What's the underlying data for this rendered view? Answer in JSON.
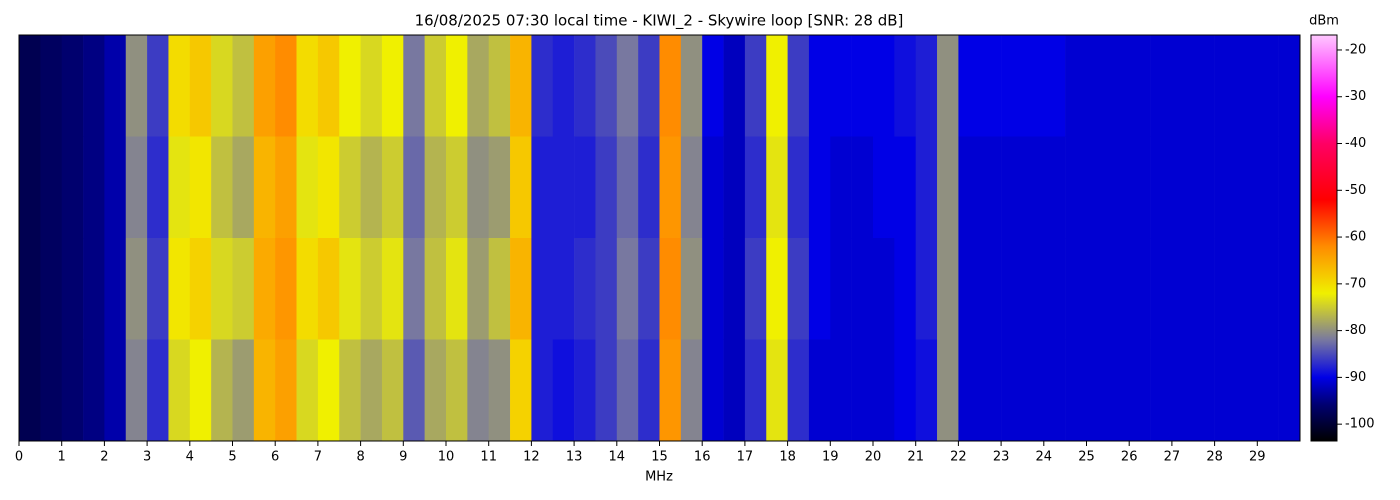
{
  "chart_data": {
    "type": "heatmap",
    "title": "16/08/2025 07:30 local time - KIWI_2 - Skywire loop [SNR: 28 dB]",
    "xlabel": "MHz",
    "colorbar_label": "dBm",
    "xlim": [
      0,
      30
    ],
    "xticks": [
      0,
      1,
      2,
      3,
      4,
      5,
      6,
      7,
      8,
      9,
      10,
      11,
      12,
      13,
      14,
      15,
      16,
      17,
      18,
      19,
      20,
      21,
      22,
      23,
      24,
      25,
      26,
      27,
      28,
      29
    ],
    "x_edges": [
      0,
      0.5,
      1,
      1.5,
      2,
      2.5,
      3,
      3.5,
      4,
      4.5,
      5,
      5.5,
      6,
      6.5,
      7,
      7.5,
      8,
      8.5,
      9,
      9.5,
      10,
      10.5,
      11,
      11.5,
      12,
      12.5,
      13,
      13.5,
      14,
      14.5,
      15,
      15.5,
      16,
      16.5,
      17,
      17.5,
      18,
      18.5,
      19,
      19.5,
      20,
      20.5,
      21,
      21.5,
      22,
      22.5,
      23,
      23.5,
      24,
      24.5,
      25,
      25.5,
      26,
      26.5,
      27,
      27.5,
      28,
      28.5,
      29,
      29.5,
      30
    ],
    "z": [
      [
        -98,
        -97,
        -96,
        -95,
        -93,
        -80,
        -86,
        -70,
        -68,
        -74,
        -76,
        -64,
        -62,
        -70,
        -68,
        -72,
        -74,
        -72,
        -82,
        -75,
        -72,
        -78,
        -76,
        -66,
        -87,
        -88,
        -87,
        -85,
        -82,
        -86,
        -62,
        -80,
        -90,
        -92,
        -86,
        -72,
        -86,
        -90,
        -90,
        -90,
        -90,
        -89,
        -88,
        -80,
        -90,
        -90,
        -90,
        -90,
        -90,
        -91,
        -91,
        -91,
        -91,
        -91,
        -91,
        -91,
        -91,
        -91,
        -91,
        -91
      ],
      [
        -98,
        -97,
        -96,
        -95,
        -93,
        -81,
        -87,
        -73,
        -71,
        -76,
        -78,
        -66,
        -64,
        -73,
        -71,
        -75,
        -77,
        -75,
        -83,
        -77,
        -75,
        -80,
        -79,
        -68,
        -88,
        -88,
        -88,
        -86,
        -83,
        -87,
        -63,
        -81,
        -91,
        -92,
        -87,
        -73,
        -87,
        -90,
        -91,
        -91,
        -90,
        -90,
        -88,
        -80,
        -91,
        -91,
        -91,
        -91,
        -91,
        -91,
        -91,
        -91,
        -91,
        -91,
        -91,
        -91,
        -91,
        -91,
        -91,
        -91
      ],
      [
        -98,
        -97,
        -96,
        -95,
        -93,
        -80,
        -86,
        -71,
        -69,
        -74,
        -75,
        -65,
        -63,
        -70,
        -68,
        -73,
        -75,
        -73,
        -82,
        -76,
        -73,
        -79,
        -76,
        -66,
        -88,
        -88,
        -87,
        -86,
        -82,
        -86,
        -62,
        -80,
        -91,
        -92,
        -86,
        -72,
        -86,
        -90,
        -91,
        -91,
        -91,
        -90,
        -88,
        -80,
        -91,
        -91,
        -91,
        -91,
        -91,
        -91,
        -91,
        -91,
        -91,
        -91,
        -91,
        -91,
        -91,
        -91,
        -91,
        -91
      ],
      [
        -98,
        -97,
        -96,
        -95,
        -93,
        -81,
        -87,
        -74,
        -72,
        -77,
        -79,
        -66,
        -64,
        -74,
        -72,
        -76,
        -78,
        -76,
        -84,
        -78,
        -76,
        -81,
        -80,
        -69,
        -88,
        -89,
        -88,
        -86,
        -83,
        -87,
        -63,
        -81,
        -91,
        -92,
        -87,
        -73,
        -87,
        -91,
        -91,
        -91,
        -91,
        -90,
        -89,
        -80,
        -91,
        -91,
        -91,
        -91,
        -91,
        -91,
        -91,
        -91,
        -91,
        -91,
        -91,
        -91,
        -91,
        -91,
        -91,
        -91
      ]
    ],
    "clim": [
      -103.6,
      -16.8
    ],
    "cticks": [
      -100,
      -90,
      -80,
      -70,
      -60,
      -50,
      -40,
      -30,
      -20
    ],
    "colormap": [
      [
        -103.6,
        "#000000"
      ],
      [
        -96,
        "#00006e"
      ],
      [
        -90,
        "#0000e6"
      ],
      [
        -82,
        "#7878a0"
      ],
      [
        -72,
        "#f0f000"
      ],
      [
        -62,
        "#ff8c00"
      ],
      [
        -52,
        "#ff0000"
      ],
      [
        -40,
        "#ff0064"
      ],
      [
        -30,
        "#ff00ff"
      ],
      [
        -16.8,
        "#ffc8ff"
      ]
    ]
  }
}
